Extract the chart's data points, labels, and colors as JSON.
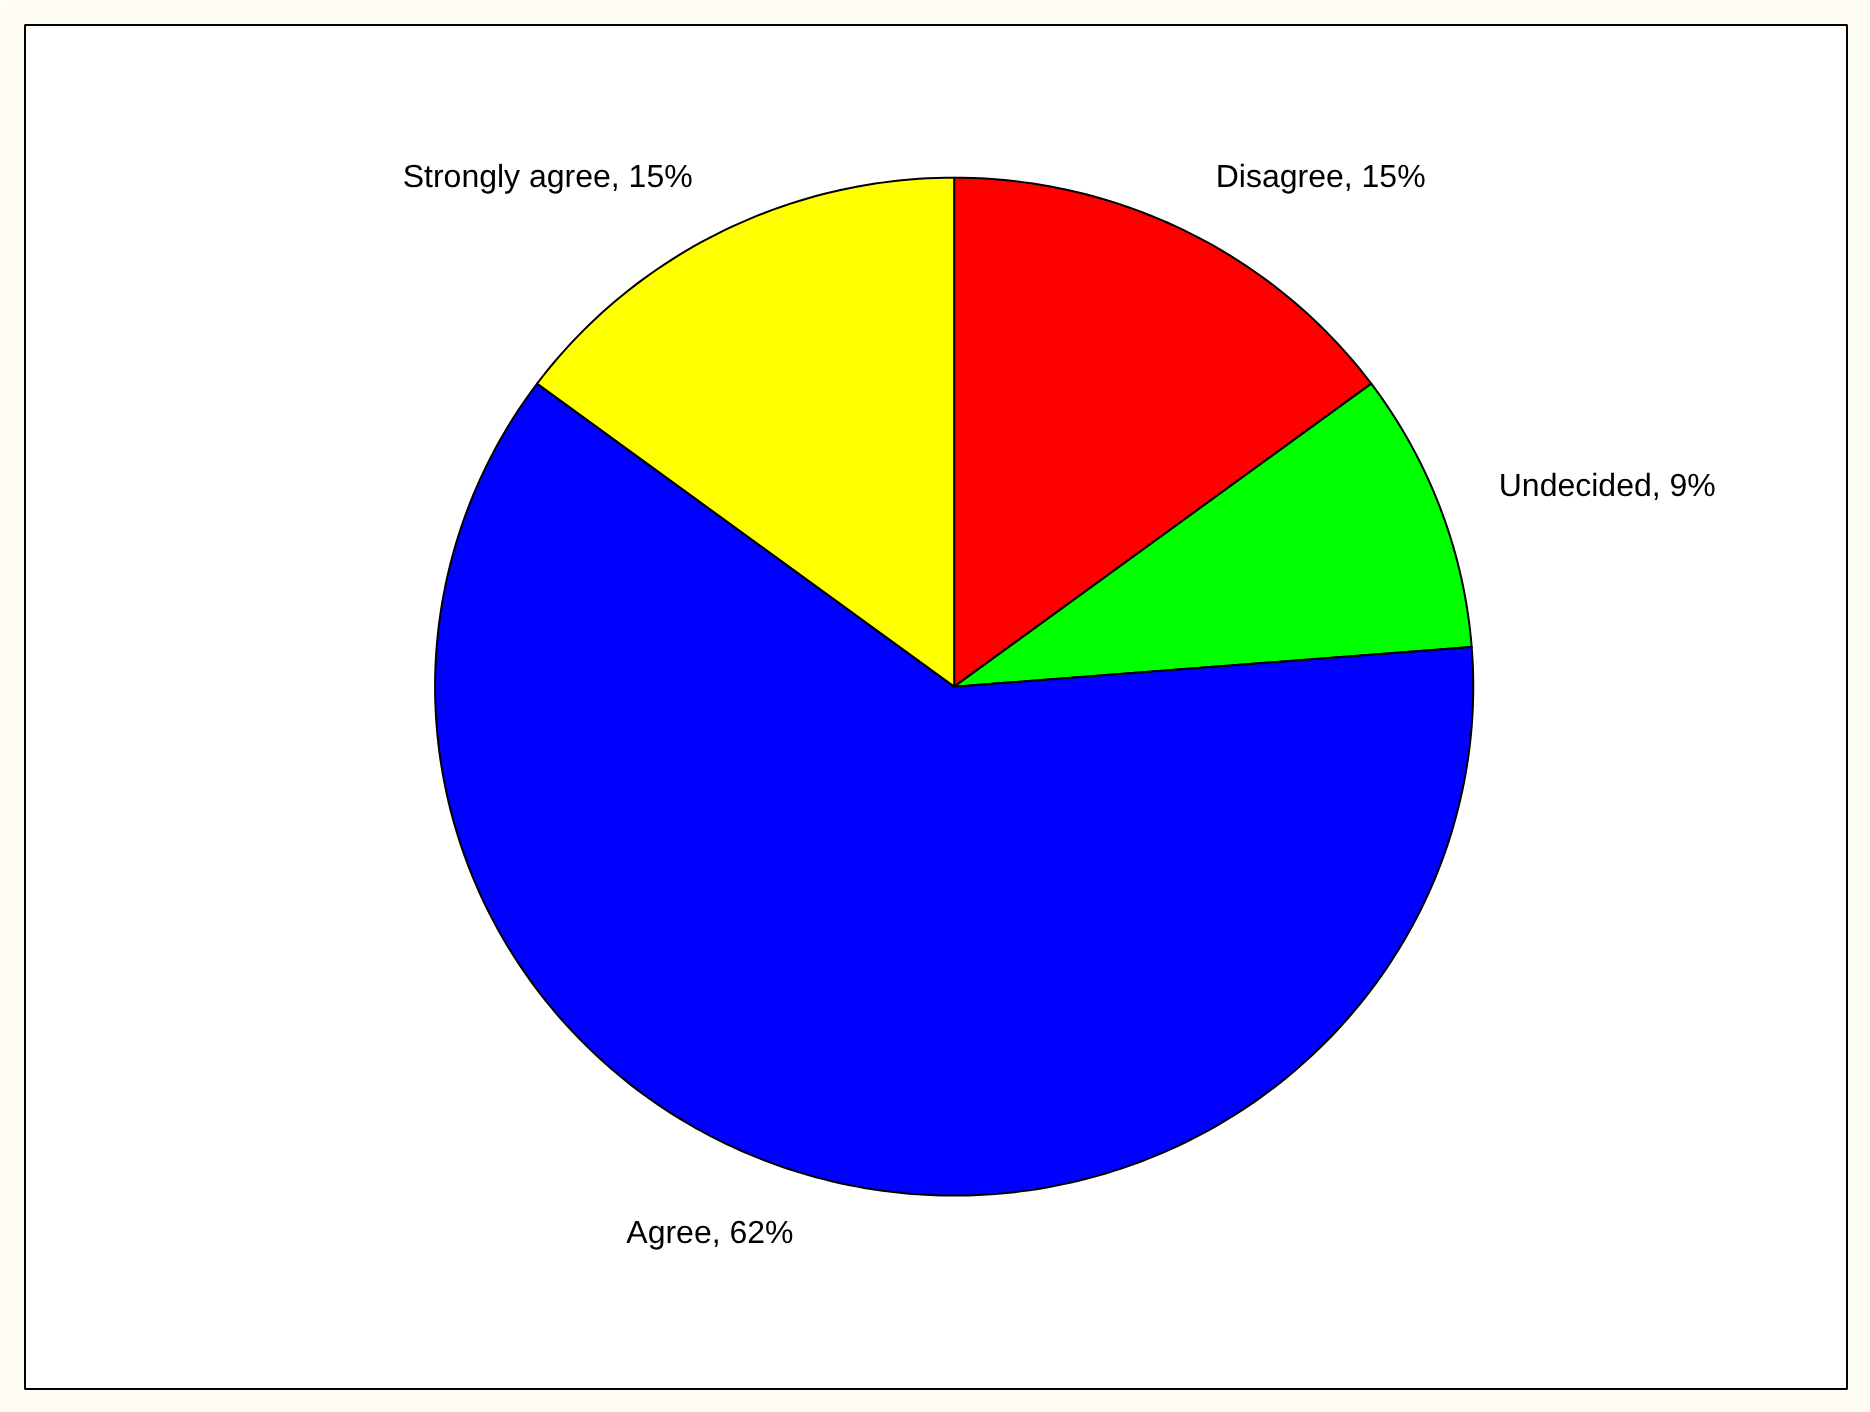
{
  "chart_data": {
    "type": "pie",
    "categories": [
      "Disagree",
      "Undecided",
      "Agree",
      "Strongly agree"
    ],
    "values": [
      15,
      9,
      62,
      15
    ],
    "colors": [
      "#ff0000",
      "#00ff00",
      "#0000ff",
      "#ffff00"
    ],
    "value_labels": [
      ", 15%",
      ", 9%",
      ", 62%",
      ", 15%"
    ]
  }
}
